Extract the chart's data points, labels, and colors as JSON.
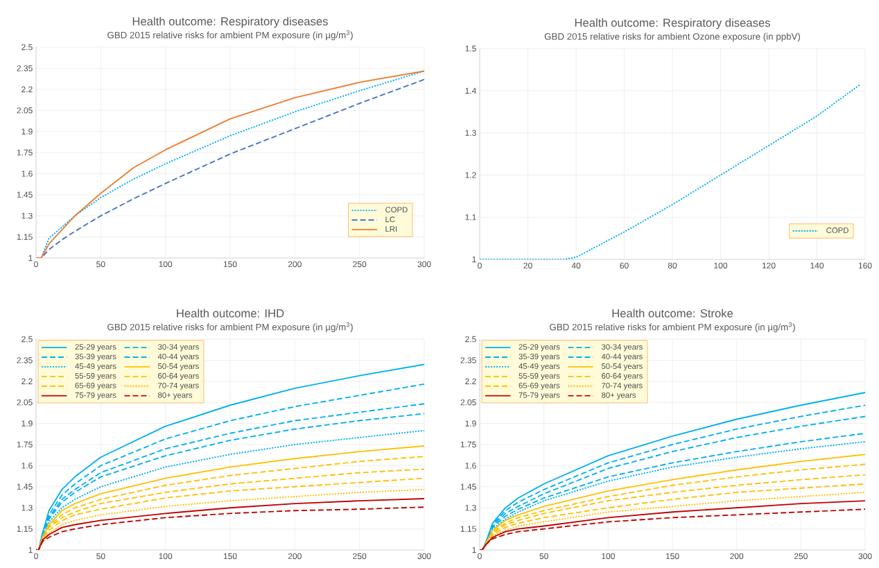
{
  "chart_data": [
    {
      "type": "line",
      "title": "Health outcome: Respiratory diseases",
      "subtitle": "GBD 2015 relative risks for ambient PM exposure (in µg/m$^{3}$)",
      "xlim": [
        0,
        300
      ],
      "ylim": [
        1,
        2.5
      ],
      "xticks": [
        0,
        50,
        100,
        150,
        200,
        250,
        300
      ],
      "yticks": [
        1,
        1.15,
        1.3,
        1.45,
        1.6,
        1.75,
        1.9,
        2.05,
        2.2,
        2.35,
        2.5
      ],
      "grid": true,
      "legend": "bottom right",
      "x": [
        0,
        4,
        10,
        20,
        30,
        50,
        75,
        100,
        150,
        200,
        250,
        300
      ],
      "series": [
        {
          "name": "COPD",
          "color": "#00b0f0",
          "line_style": "dotted",
          "values": [
            1,
            1,
            1.14,
            1.22,
            1.3,
            1.43,
            1.56,
            1.67,
            1.87,
            2.04,
            2.19,
            2.33
          ]
        },
        {
          "name": "LC",
          "color": "#4472c4",
          "line_style": "dashed",
          "values": [
            1,
            1,
            1.06,
            1.13,
            1.19,
            1.3,
            1.42,
            1.53,
            1.74,
            1.92,
            2.1,
            2.27
          ]
        },
        {
          "name": "LRI",
          "color": "#ed7d31",
          "line_style": "solid",
          "values": [
            1,
            1,
            1.1,
            1.2,
            1.3,
            1.46,
            1.64,
            1.77,
            1.99,
            2.14,
            2.25,
            2.33
          ]
        }
      ]
    },
    {
      "type": "line",
      "title": "Health outcome: Respiratory diseases",
      "subtitle": "GBD 2015 relative risks for ambient Ozone exposure (in ppbV)",
      "xlim": [
        0,
        160
      ],
      "ylim": [
        1,
        1.5
      ],
      "xticks": [
        0,
        20,
        40,
        60,
        80,
        100,
        120,
        140,
        160
      ],
      "yticks": [
        1,
        1.1,
        1.2,
        1.3,
        1.4,
        1.5
      ],
      "grid": true,
      "legend": "bottom right",
      "x": [
        0,
        35,
        40,
        60,
        80,
        100,
        120,
        140,
        158
      ],
      "series": [
        {
          "name": "COPD",
          "color": "#00b0f0",
          "line_style": "dotted",
          "values": [
            1,
            1,
            1.005,
            1.065,
            1.13,
            1.2,
            1.27,
            1.34,
            1.415
          ]
        }
      ]
    },
    {
      "type": "line",
      "title": "Health outcome: IHD",
      "subtitle": "GBD 2015 relative risks for ambient PM exposure (in µg/m$^{3}$)",
      "xlim": [
        0,
        300
      ],
      "ylim": [
        1,
        2.5
      ],
      "xticks": [
        0,
        50,
        100,
        150,
        200,
        250,
        300
      ],
      "yticks": [
        1,
        1.15,
        1.3,
        1.45,
        1.6,
        1.75,
        1.9,
        2.05,
        2.2,
        2.35,
        2.5
      ],
      "grid": true,
      "legend": "top left",
      "x": [
        0,
        2,
        5,
        10,
        20,
        30,
        50,
        100,
        150,
        200,
        250,
        300
      ],
      "series": [
        {
          "name": "25-29 years",
          "color": "#00b0f0",
          "line_style": "solid",
          "values": [
            1,
            1,
            1.12,
            1.28,
            1.43,
            1.52,
            1.66,
            1.88,
            2.03,
            2.15,
            2.24,
            2.32
          ]
        },
        {
          "name": "30-34 years",
          "color": "#00b0f0",
          "line_style": "dashed",
          "values": [
            1,
            1,
            1.11,
            1.25,
            1.39,
            1.47,
            1.6,
            1.79,
            1.92,
            2.02,
            2.1,
            2.18
          ]
        },
        {
          "name": "35-39 years",
          "color": "#00b0f0",
          "line_style": "dashed",
          "values": [
            1,
            1,
            1.1,
            1.23,
            1.36,
            1.43,
            1.55,
            1.72,
            1.83,
            1.92,
            1.98,
            2.04
          ]
        },
        {
          "name": "40-44 years",
          "color": "#00b0f0",
          "line_style": "dashed",
          "values": [
            1,
            1,
            1.1,
            1.22,
            1.34,
            1.41,
            1.52,
            1.67,
            1.78,
            1.86,
            1.92,
            1.97
          ]
        },
        {
          "name": "45-49 years",
          "color": "#00b0f0",
          "line_style": "dotted",
          "values": [
            1,
            1,
            1.09,
            1.2,
            1.3,
            1.36,
            1.45,
            1.59,
            1.68,
            1.75,
            1.8,
            1.85
          ]
        },
        {
          "name": "50-54 years",
          "color": "#ffc000",
          "line_style": "solid",
          "values": [
            1,
            1,
            1.09,
            1.18,
            1.28,
            1.33,
            1.4,
            1.51,
            1.59,
            1.65,
            1.7,
            1.74
          ]
        },
        {
          "name": "55-59 years",
          "color": "#ffc000",
          "line_style": "dashed",
          "values": [
            1,
            1,
            1.08,
            1.17,
            1.25,
            1.3,
            1.36,
            1.46,
            1.53,
            1.58,
            1.63,
            1.665
          ]
        },
        {
          "name": "60-64 years",
          "color": "#ffc000",
          "line_style": "dashed",
          "values": [
            1,
            1,
            1.08,
            1.16,
            1.23,
            1.27,
            1.33,
            1.41,
            1.47,
            1.51,
            1.55,
            1.575
          ]
        },
        {
          "name": "65-69 years",
          "color": "#ffc000",
          "line_style": "dashed",
          "values": [
            1,
            1,
            1.08,
            1.14,
            1.21,
            1.25,
            1.29,
            1.37,
            1.42,
            1.45,
            1.48,
            1.51
          ]
        },
        {
          "name": "70-74 years",
          "color": "#ffc000",
          "line_style": "dotted",
          "values": [
            1,
            1,
            1.07,
            1.12,
            1.18,
            1.21,
            1.25,
            1.31,
            1.35,
            1.38,
            1.41,
            1.43
          ]
        },
        {
          "name": "75-79 years",
          "color": "#c00000",
          "line_style": "solid",
          "values": [
            1,
            1,
            1.07,
            1.11,
            1.16,
            1.18,
            1.21,
            1.26,
            1.3,
            1.33,
            1.35,
            1.365
          ]
        },
        {
          "name": "80+ years",
          "color": "#c00000",
          "line_style": "dashed",
          "values": [
            1,
            1,
            1.06,
            1.09,
            1.13,
            1.15,
            1.18,
            1.23,
            1.26,
            1.28,
            1.29,
            1.305
          ]
        }
      ]
    },
    {
      "type": "line",
      "title": "Health outcome: Stroke",
      "subtitle": "GBD 2015 relative risks for ambient PM exposure (in µg/m$^{3}$)",
      "xlim": [
        0,
        300
      ],
      "ylim": [
        1,
        2.5
      ],
      "xticks": [
        0,
        50,
        100,
        150,
        200,
        250,
        300
      ],
      "yticks": [
        1,
        1.15,
        1.3,
        1.45,
        1.6,
        1.75,
        1.9,
        2.05,
        2.2,
        2.35,
        2.5
      ],
      "grid": true,
      "legend": "top left",
      "x": [
        0,
        2,
        5,
        10,
        20,
        30,
        50,
        100,
        150,
        200,
        250,
        300
      ],
      "series": [
        {
          "name": "25-29 years",
          "color": "#00b0f0",
          "line_style": "solid",
          "values": [
            1,
            1,
            1.06,
            1.19,
            1.3,
            1.37,
            1.47,
            1.67,
            1.81,
            1.93,
            2.03,
            2.12
          ]
        },
        {
          "name": "30-34 years",
          "color": "#00b0f0",
          "line_style": "dashed",
          "values": [
            1,
            1,
            1.06,
            1.18,
            1.28,
            1.34,
            1.43,
            1.62,
            1.75,
            1.86,
            1.95,
            2.03
          ]
        },
        {
          "name": "35-39 years",
          "color": "#00b0f0",
          "line_style": "dashed",
          "values": [
            1,
            1,
            1.06,
            1.17,
            1.26,
            1.31,
            1.4,
            1.58,
            1.7,
            1.8,
            1.88,
            1.95
          ]
        },
        {
          "name": "40-44 years",
          "color": "#00b0f0",
          "line_style": "dashed",
          "values": [
            1,
            1,
            1.05,
            1.16,
            1.24,
            1.29,
            1.37,
            1.52,
            1.62,
            1.7,
            1.77,
            1.83
          ]
        },
        {
          "name": "45-49 years",
          "color": "#00b0f0",
          "line_style": "dotted",
          "values": [
            1,
            1,
            1.05,
            1.15,
            1.22,
            1.27,
            1.35,
            1.49,
            1.59,
            1.66,
            1.72,
            1.77
          ]
        },
        {
          "name": "50-54 years",
          "color": "#ffc000",
          "line_style": "solid",
          "values": [
            1,
            1,
            1.05,
            1.14,
            1.21,
            1.25,
            1.31,
            1.42,
            1.5,
            1.57,
            1.63,
            1.68
          ]
        },
        {
          "name": "55-59 years",
          "color": "#ffc000",
          "line_style": "dashed",
          "values": [
            1,
            1,
            1.05,
            1.13,
            1.19,
            1.23,
            1.28,
            1.38,
            1.46,
            1.52,
            1.57,
            1.61
          ]
        },
        {
          "name": "60-64 years",
          "color": "#ffc000",
          "line_style": "dashed",
          "values": [
            1,
            1,
            1.05,
            1.12,
            1.18,
            1.21,
            1.26,
            1.35,
            1.41,
            1.46,
            1.5,
            1.535
          ]
        },
        {
          "name": "65-69 years",
          "color": "#ffc000",
          "line_style": "dashed",
          "values": [
            1,
            1,
            1.04,
            1.11,
            1.16,
            1.19,
            1.23,
            1.3,
            1.36,
            1.41,
            1.44,
            1.47
          ]
        },
        {
          "name": "70-74 years",
          "color": "#ffc000",
          "line_style": "dotted",
          "values": [
            1,
            1,
            1.04,
            1.1,
            1.14,
            1.17,
            1.2,
            1.27,
            1.31,
            1.35,
            1.38,
            1.41
          ]
        },
        {
          "name": "75-79 years",
          "color": "#c00000",
          "line_style": "solid",
          "values": [
            1,
            1,
            1.04,
            1.09,
            1.13,
            1.15,
            1.17,
            1.23,
            1.27,
            1.3,
            1.33,
            1.35
          ]
        },
        {
          "name": "80+ years",
          "color": "#c00000",
          "line_style": "dashed",
          "values": [
            1,
            1,
            1.04,
            1.08,
            1.11,
            1.13,
            1.15,
            1.2,
            1.23,
            1.25,
            1.27,
            1.29
          ]
        }
      ]
    }
  ]
}
